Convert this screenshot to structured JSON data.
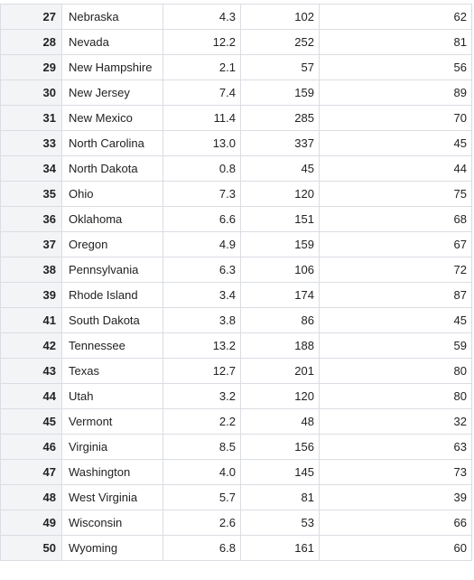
{
  "table": {
    "rows": [
      {
        "index": "27",
        "state": "Nebraska",
        "v1": "4.3",
        "v2": "102",
        "v3": "62"
      },
      {
        "index": "28",
        "state": "Nevada",
        "v1": "12.2",
        "v2": "252",
        "v3": "81"
      },
      {
        "index": "29",
        "state": "New Hampshire",
        "v1": "2.1",
        "v2": "57",
        "v3": "56"
      },
      {
        "index": "30",
        "state": "New Jersey",
        "v1": "7.4",
        "v2": "159",
        "v3": "89"
      },
      {
        "index": "31",
        "state": "New Mexico",
        "v1": "11.4",
        "v2": "285",
        "v3": "70"
      },
      {
        "index": "33",
        "state": "North Carolina",
        "v1": "13.0",
        "v2": "337",
        "v3": "45"
      },
      {
        "index": "34",
        "state": "North Dakota",
        "v1": "0.8",
        "v2": "45",
        "v3": "44"
      },
      {
        "index": "35",
        "state": "Ohio",
        "v1": "7.3",
        "v2": "120",
        "v3": "75"
      },
      {
        "index": "36",
        "state": "Oklahoma",
        "v1": "6.6",
        "v2": "151",
        "v3": "68"
      },
      {
        "index": "37",
        "state": "Oregon",
        "v1": "4.9",
        "v2": "159",
        "v3": "67"
      },
      {
        "index": "38",
        "state": "Pennsylvania",
        "v1": "6.3",
        "v2": "106",
        "v3": "72"
      },
      {
        "index": "39",
        "state": "Rhode Island",
        "v1": "3.4",
        "v2": "174",
        "v3": "87"
      },
      {
        "index": "41",
        "state": "South Dakota",
        "v1": "3.8",
        "v2": "86",
        "v3": "45"
      },
      {
        "index": "42",
        "state": "Tennessee",
        "v1": "13.2",
        "v2": "188",
        "v3": "59"
      },
      {
        "index": "43",
        "state": "Texas",
        "v1": "12.7",
        "v2": "201",
        "v3": "80"
      },
      {
        "index": "44",
        "state": "Utah",
        "v1": "3.2",
        "v2": "120",
        "v3": "80"
      },
      {
        "index": "45",
        "state": "Vermont",
        "v1": "2.2",
        "v2": "48",
        "v3": "32"
      },
      {
        "index": "46",
        "state": "Virginia",
        "v1": "8.5",
        "v2": "156",
        "v3": "63"
      },
      {
        "index": "47",
        "state": "Washington",
        "v1": "4.0",
        "v2": "145",
        "v3": "73"
      },
      {
        "index": "48",
        "state": "West Virginia",
        "v1": "5.7",
        "v2": "81",
        "v3": "39"
      },
      {
        "index": "49",
        "state": "Wisconsin",
        "v1": "2.6",
        "v2": "53",
        "v3": "66"
      },
      {
        "index": "50",
        "state": "Wyoming",
        "v1": "6.8",
        "v2": "161",
        "v3": "60"
      }
    ]
  },
  "colors": {
    "index_background": "#f3f4f6",
    "grid_line": "#dadde3",
    "text": "#222222"
  }
}
